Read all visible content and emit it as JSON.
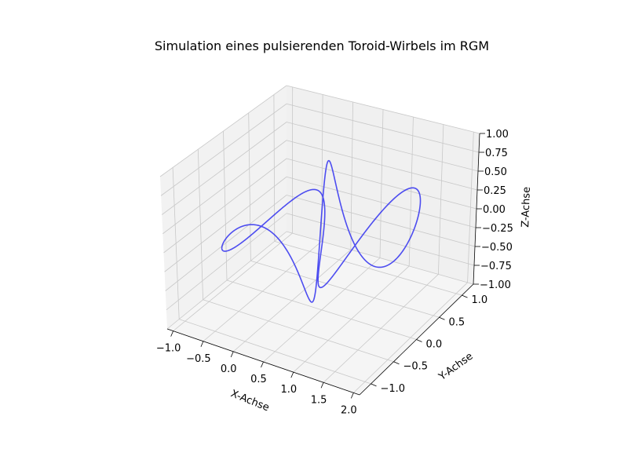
{
  "chart_data": {
    "type": "line",
    "projection": "3d",
    "title": "Simulation eines pulsierenden Toroid-Wirbels im RGM",
    "xlabel": "X-Achse",
    "ylabel": "Y-Achse",
    "zlabel": "Z-Achse",
    "xlim": [
      -1.1,
      2.1
    ],
    "ylim": [
      -1.25,
      1.25
    ],
    "zlim": [
      -1.0,
      1.0
    ],
    "x_ticks": [
      "−1.0",
      "−0.5",
      "0.0",
      "0.5",
      "1.0",
      "1.5",
      "2.0"
    ],
    "y_ticks": [
      "−1.0",
      "−0.5",
      "0.0",
      "0.5",
      "1.0"
    ],
    "z_ticks": [
      "−1.00",
      "−0.75",
      "−0.50",
      "−0.25",
      "0.00",
      "0.25",
      "0.50",
      "0.75",
      "1.00"
    ],
    "grid": true,
    "series": [
      {
        "color": "#3b3bf0",
        "param": {
          "t_range": [
            0,
            21
          ],
          "x": "0.5 + 0.4*cos(t) + 0.7*cos(t/3)",
          "y": "0.55*cos(t/3) + 0.45*sin(t)*cos(t/3)",
          "z": "0.85*sin(t/3)*cos(t) + 0.2*sin(t)"
        }
      }
    ]
  }
}
